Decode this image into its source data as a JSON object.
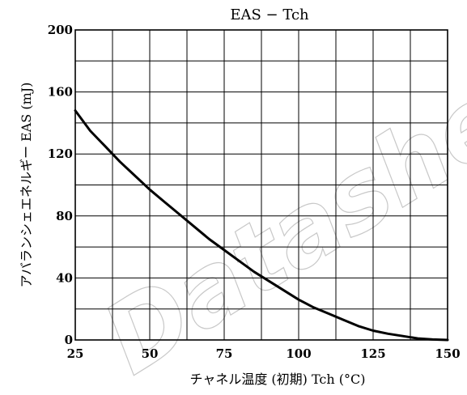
{
  "chart_data": {
    "type": "line",
    "title": "EAS − Tch",
    "xlabel": "チャネル温度 (初期)  Tch  (°C)",
    "ylabel": "アバランシェエネルギー   EAS   (mJ)",
    "xlim": [
      25,
      150
    ],
    "ylim": [
      0,
      200
    ],
    "x_ticks": [
      25,
      50,
      75,
      100,
      125,
      150
    ],
    "y_ticks": [
      0,
      40,
      80,
      120,
      160,
      200
    ],
    "grid": true,
    "series": [
      {
        "x": [
          25,
          30,
          35,
          40,
          45,
          50,
          55,
          60,
          65,
          70,
          75,
          80,
          85,
          90,
          95,
          100,
          105,
          110,
          115,
          120,
          125,
          130,
          135,
          140,
          145,
          150
        ],
        "y": [
          148,
          135,
          125,
          115,
          106,
          97,
          89,
          81,
          73,
          65,
          58,
          51,
          44,
          38,
          32,
          26,
          21,
          17,
          13,
          9,
          6,
          4,
          2.5,
          1,
          0.3,
          0
        ],
        "color": "#000000"
      }
    ]
  },
  "watermark": "Datasheet"
}
